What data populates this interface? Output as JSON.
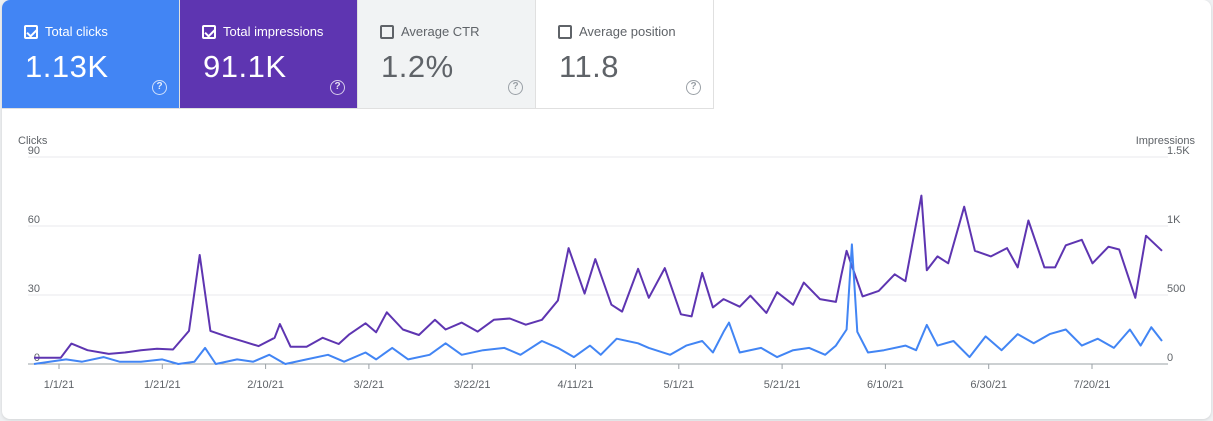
{
  "metrics": [
    {
      "label": "Total clicks",
      "value": "1.13K",
      "checked": true,
      "color": "#4285f4"
    },
    {
      "label": "Total impressions",
      "value": "91.1K",
      "checked": true,
      "color": "#5e35b1"
    },
    {
      "label": "Average CTR",
      "value": "1.2%",
      "checked": false,
      "color": "#f1f3f4"
    },
    {
      "label": "Average position",
      "value": "11.8",
      "checked": false,
      "color": "#ffffff"
    }
  ],
  "help_glyph": "?",
  "chart_data": {
    "type": "line",
    "left_axis": {
      "title": "Clicks",
      "ticks": [
        "90",
        "60",
        "30",
        "0"
      ],
      "range": [
        0,
        90
      ]
    },
    "right_axis": {
      "title": "Impressions",
      "ticks": [
        "1.5K",
        "1K",
        "500",
        "0"
      ],
      "range": [
        0,
        1500
      ]
    },
    "x_tick_labels": [
      "1/1/21",
      "1/21/21",
      "2/10/21",
      "3/2/21",
      "3/22/21",
      "4/11/21",
      "5/1/21",
      "5/21/21",
      "6/10/21",
      "6/30/21",
      "7/20/21"
    ],
    "x_range": [
      "2021-01-01",
      "2021-07-31"
    ],
    "grid": true,
    "series": [
      {
        "name": "Total impressions",
        "axis": "right",
        "color": "#5e35b1",
        "points": [
          [
            "2021-01-01",
            45
          ],
          [
            "2021-01-06",
            45
          ],
          [
            "2021-01-08",
            148
          ],
          [
            "2021-01-11",
            100
          ],
          [
            "2021-01-15",
            73
          ],
          [
            "2021-01-18",
            83
          ],
          [
            "2021-01-21",
            100
          ],
          [
            "2021-01-24",
            110
          ],
          [
            "2021-01-27",
            105
          ],
          [
            "2021-01-30",
            240
          ],
          [
            "2021-02-01",
            790
          ],
          [
            "2021-02-03",
            240
          ],
          [
            "2021-02-06",
            200
          ],
          [
            "2021-02-09",
            165
          ],
          [
            "2021-02-12",
            130
          ],
          [
            "2021-02-15",
            190
          ],
          [
            "2021-02-16",
            290
          ],
          [
            "2021-02-18",
            125
          ],
          [
            "2021-02-21",
            125
          ],
          [
            "2021-02-24",
            190
          ],
          [
            "2021-02-27",
            145
          ],
          [
            "2021-03-01",
            215
          ],
          [
            "2021-03-04",
            295
          ],
          [
            "2021-03-06",
            230
          ],
          [
            "2021-03-08",
            375
          ],
          [
            "2021-03-11",
            250
          ],
          [
            "2021-03-14",
            210
          ],
          [
            "2021-03-17",
            320
          ],
          [
            "2021-03-19",
            250
          ],
          [
            "2021-03-22",
            300
          ],
          [
            "2021-03-25",
            235
          ],
          [
            "2021-03-28",
            320
          ],
          [
            "2021-03-31",
            330
          ],
          [
            "2021-04-03",
            285
          ],
          [
            "2021-04-06",
            320
          ],
          [
            "2021-04-09",
            460
          ],
          [
            "2021-04-11",
            840
          ],
          [
            "2021-04-14",
            510
          ],
          [
            "2021-04-16",
            760
          ],
          [
            "2021-04-19",
            430
          ],
          [
            "2021-04-21",
            380
          ],
          [
            "2021-04-24",
            690
          ],
          [
            "2021-04-26",
            480
          ],
          [
            "2021-04-29",
            695
          ],
          [
            "2021-05-02",
            360
          ],
          [
            "2021-05-04",
            345
          ],
          [
            "2021-05-06",
            660
          ],
          [
            "2021-05-08",
            410
          ],
          [
            "2021-05-10",
            470
          ],
          [
            "2021-05-13",
            415
          ],
          [
            "2021-05-15",
            495
          ],
          [
            "2021-05-18",
            370
          ],
          [
            "2021-05-20",
            520
          ],
          [
            "2021-05-23",
            430
          ],
          [
            "2021-05-25",
            590
          ],
          [
            "2021-05-28",
            470
          ],
          [
            "2021-05-31",
            450
          ],
          [
            "2021-06-01",
            640
          ],
          [
            "2021-06-02",
            820
          ],
          [
            "2021-06-05",
            490
          ],
          [
            "2021-06-08",
            530
          ],
          [
            "2021-06-11",
            650
          ],
          [
            "2021-06-13",
            600
          ],
          [
            "2021-06-16",
            1220
          ],
          [
            "2021-06-17",
            680
          ],
          [
            "2021-06-19",
            780
          ],
          [
            "2021-06-21",
            730
          ],
          [
            "2021-06-24",
            1140
          ],
          [
            "2021-06-26",
            820
          ],
          [
            "2021-06-29",
            780
          ],
          [
            "2021-07-02",
            840
          ],
          [
            "2021-07-04",
            700
          ],
          [
            "2021-07-06",
            1040
          ],
          [
            "2021-07-09",
            700
          ],
          [
            "2021-07-11",
            700
          ],
          [
            "2021-07-13",
            860
          ],
          [
            "2021-07-16",
            900
          ],
          [
            "2021-07-18",
            730
          ],
          [
            "2021-07-21",
            850
          ],
          [
            "2021-07-23",
            830
          ],
          [
            "2021-07-26",
            480
          ],
          [
            "2021-07-28",
            930
          ],
          [
            "2021-07-31",
            820
          ]
        ]
      },
      {
        "name": "Total clicks",
        "axis": "left",
        "color": "#4285f4",
        "points": [
          [
            "2021-01-01",
            0
          ],
          [
            "2021-01-07",
            2
          ],
          [
            "2021-01-10",
            1
          ],
          [
            "2021-01-14",
            3
          ],
          [
            "2021-01-17",
            1
          ],
          [
            "2021-01-21",
            1
          ],
          [
            "2021-01-25",
            2
          ],
          [
            "2021-01-28",
            0
          ],
          [
            "2021-01-31",
            1
          ],
          [
            "2021-02-02",
            7
          ],
          [
            "2021-02-04",
            0
          ],
          [
            "2021-02-08",
            2
          ],
          [
            "2021-02-11",
            1
          ],
          [
            "2021-02-14",
            4
          ],
          [
            "2021-02-17",
            0
          ],
          [
            "2021-02-21",
            2
          ],
          [
            "2021-02-25",
            4
          ],
          [
            "2021-02-28",
            1
          ],
          [
            "2021-03-04",
            5
          ],
          [
            "2021-03-06",
            2
          ],
          [
            "2021-03-09",
            7
          ],
          [
            "2021-03-12",
            2
          ],
          [
            "2021-03-16",
            4
          ],
          [
            "2021-03-19",
            9
          ],
          [
            "2021-03-22",
            4
          ],
          [
            "2021-03-26",
            6
          ],
          [
            "2021-03-30",
            7
          ],
          [
            "2021-04-02",
            4
          ],
          [
            "2021-04-06",
            10
          ],
          [
            "2021-04-09",
            7
          ],
          [
            "2021-04-12",
            3
          ],
          [
            "2021-04-15",
            8
          ],
          [
            "2021-04-17",
            4
          ],
          [
            "2021-04-20",
            11
          ],
          [
            "2021-04-24",
            9
          ],
          [
            "2021-04-26",
            7
          ],
          [
            "2021-04-30",
            4
          ],
          [
            "2021-05-03",
            8
          ],
          [
            "2021-05-06",
            10
          ],
          [
            "2021-05-08",
            5
          ],
          [
            "2021-05-10",
            14
          ],
          [
            "2021-05-11",
            18
          ],
          [
            "2021-05-13",
            5
          ],
          [
            "2021-05-17",
            7
          ],
          [
            "2021-05-20",
            3
          ],
          [
            "2021-05-23",
            6
          ],
          [
            "2021-05-26",
            7
          ],
          [
            "2021-05-29",
            4
          ],
          [
            "2021-05-31",
            8
          ],
          [
            "2021-06-02",
            15
          ],
          [
            "2021-06-03",
            52
          ],
          [
            "2021-06-04",
            14
          ],
          [
            "2021-06-06",
            5
          ],
          [
            "2021-06-09",
            6
          ],
          [
            "2021-06-13",
            8
          ],
          [
            "2021-06-15",
            6
          ],
          [
            "2021-06-17",
            17
          ],
          [
            "2021-06-19",
            8
          ],
          [
            "2021-06-22",
            10
          ],
          [
            "2021-06-25",
            3
          ],
          [
            "2021-06-28",
            12
          ],
          [
            "2021-07-01",
            6
          ],
          [
            "2021-07-04",
            13
          ],
          [
            "2021-07-07",
            9
          ],
          [
            "2021-07-10",
            13
          ],
          [
            "2021-07-13",
            15
          ],
          [
            "2021-07-16",
            8
          ],
          [
            "2021-07-19",
            11
          ],
          [
            "2021-07-22",
            7
          ],
          [
            "2021-07-25",
            15
          ],
          [
            "2021-07-27",
            8
          ],
          [
            "2021-07-29",
            16
          ],
          [
            "2021-07-31",
            10
          ]
        ]
      }
    ]
  }
}
